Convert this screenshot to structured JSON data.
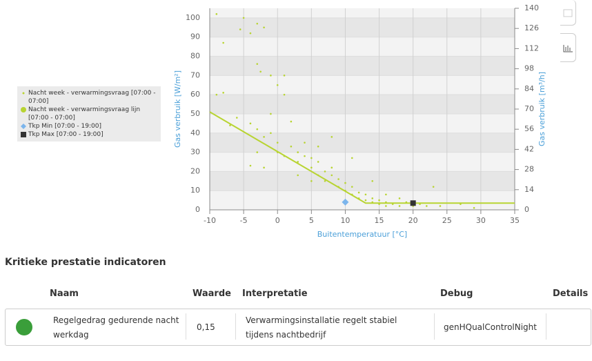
{
  "chart_data": {
    "type": "scatter",
    "x_label": "Buitentemperatuur [°C]",
    "y_label": "Gas verbruik [W/m²]",
    "y2_label": "Gas verbruik [m³/h]",
    "xlim": [
      -10,
      35
    ],
    "xticks": [
      -10,
      -5,
      0,
      5,
      10,
      15,
      20,
      25,
      30,
      35
    ],
    "ylim": [
      0,
      105
    ],
    "yticks": [
      0,
      10,
      20,
      30,
      40,
      50,
      60,
      70,
      80,
      90,
      100
    ],
    "y2lim": [
      0,
      140
    ],
    "y2ticks": [
      0,
      14,
      28,
      42,
      56,
      70,
      84,
      98,
      112,
      126,
      140
    ],
    "grid": true,
    "legend": "left",
    "series": [
      {
        "name": "Nacht week - verwarmingsvraag [07:00 - 07:00]",
        "color": "#b8d432",
        "marker": "dot",
        "x": [
          -9,
          -5,
          -8,
          -3,
          -5.5,
          -2,
          -4,
          -9,
          -8,
          -3,
          -2.5,
          -1,
          0,
          1,
          1,
          -6,
          -7,
          -4,
          -3,
          -2,
          -1,
          0,
          0,
          1,
          2,
          3,
          3,
          4,
          5,
          5,
          6,
          6,
          7,
          7,
          8,
          8,
          9,
          9,
          10,
          10,
          11,
          11,
          12,
          12,
          13,
          13,
          14,
          14,
          15,
          15,
          16,
          16,
          17,
          18,
          19,
          20,
          21,
          22,
          23,
          24,
          27,
          29,
          -4,
          -2,
          2,
          4,
          8,
          -3,
          11,
          14,
          5,
          3,
          16,
          18,
          -1,
          6
        ],
        "y": [
          102,
          100,
          87,
          97,
          94,
          95,
          92,
          60,
          61,
          76,
          72,
          70,
          65,
          60,
          70,
          48,
          44,
          45,
          42,
          38,
          40,
          30,
          35,
          28,
          33,
          25,
          30,
          28,
          22,
          27,
          25,
          18,
          20,
          15,
          18,
          22,
          12,
          16,
          10,
          14,
          8,
          12,
          6,
          9,
          5,
          8,
          4,
          6,
          3,
          5,
          2,
          4,
          3,
          2,
          4,
          2,
          3,
          2,
          12,
          2,
          3,
          1,
          23,
          22,
          46,
          35,
          38,
          30,
          27,
          15,
          15,
          18,
          8,
          6,
          50,
          33
        ]
      },
      {
        "name": "Nacht week - verwarmingsvraag lijn [07:00 - 07:00]",
        "color": "#b8d432",
        "marker": "line",
        "x": [
          -10,
          13,
          35
        ],
        "y": [
          51,
          3.5,
          3.5
        ]
      },
      {
        "name": "Tkp Min [07:00 - 19:00]",
        "color": "#7cb5ec",
        "marker": "diamond",
        "x": [
          10
        ],
        "y": [
          4
        ]
      },
      {
        "name": "Tkp Max [07:00 - 19:00]",
        "color": "#333333",
        "marker": "square",
        "x": [
          20
        ],
        "y": [
          3.5
        ]
      }
    ]
  },
  "section_title": "Kritieke prestatie indicatoren",
  "table": {
    "headers": [
      "Naam",
      "Waarde",
      "Interpretatie",
      "Debug",
      "Details"
    ],
    "rows": [
      [
        "Regelgedrag gedurende nacht werkdag",
        "0,15",
        "Verwarmingsinstallatie regelt stabiel tijdens nachtbedrijf",
        "genHQualControlNight"
      ]
    ]
  }
}
